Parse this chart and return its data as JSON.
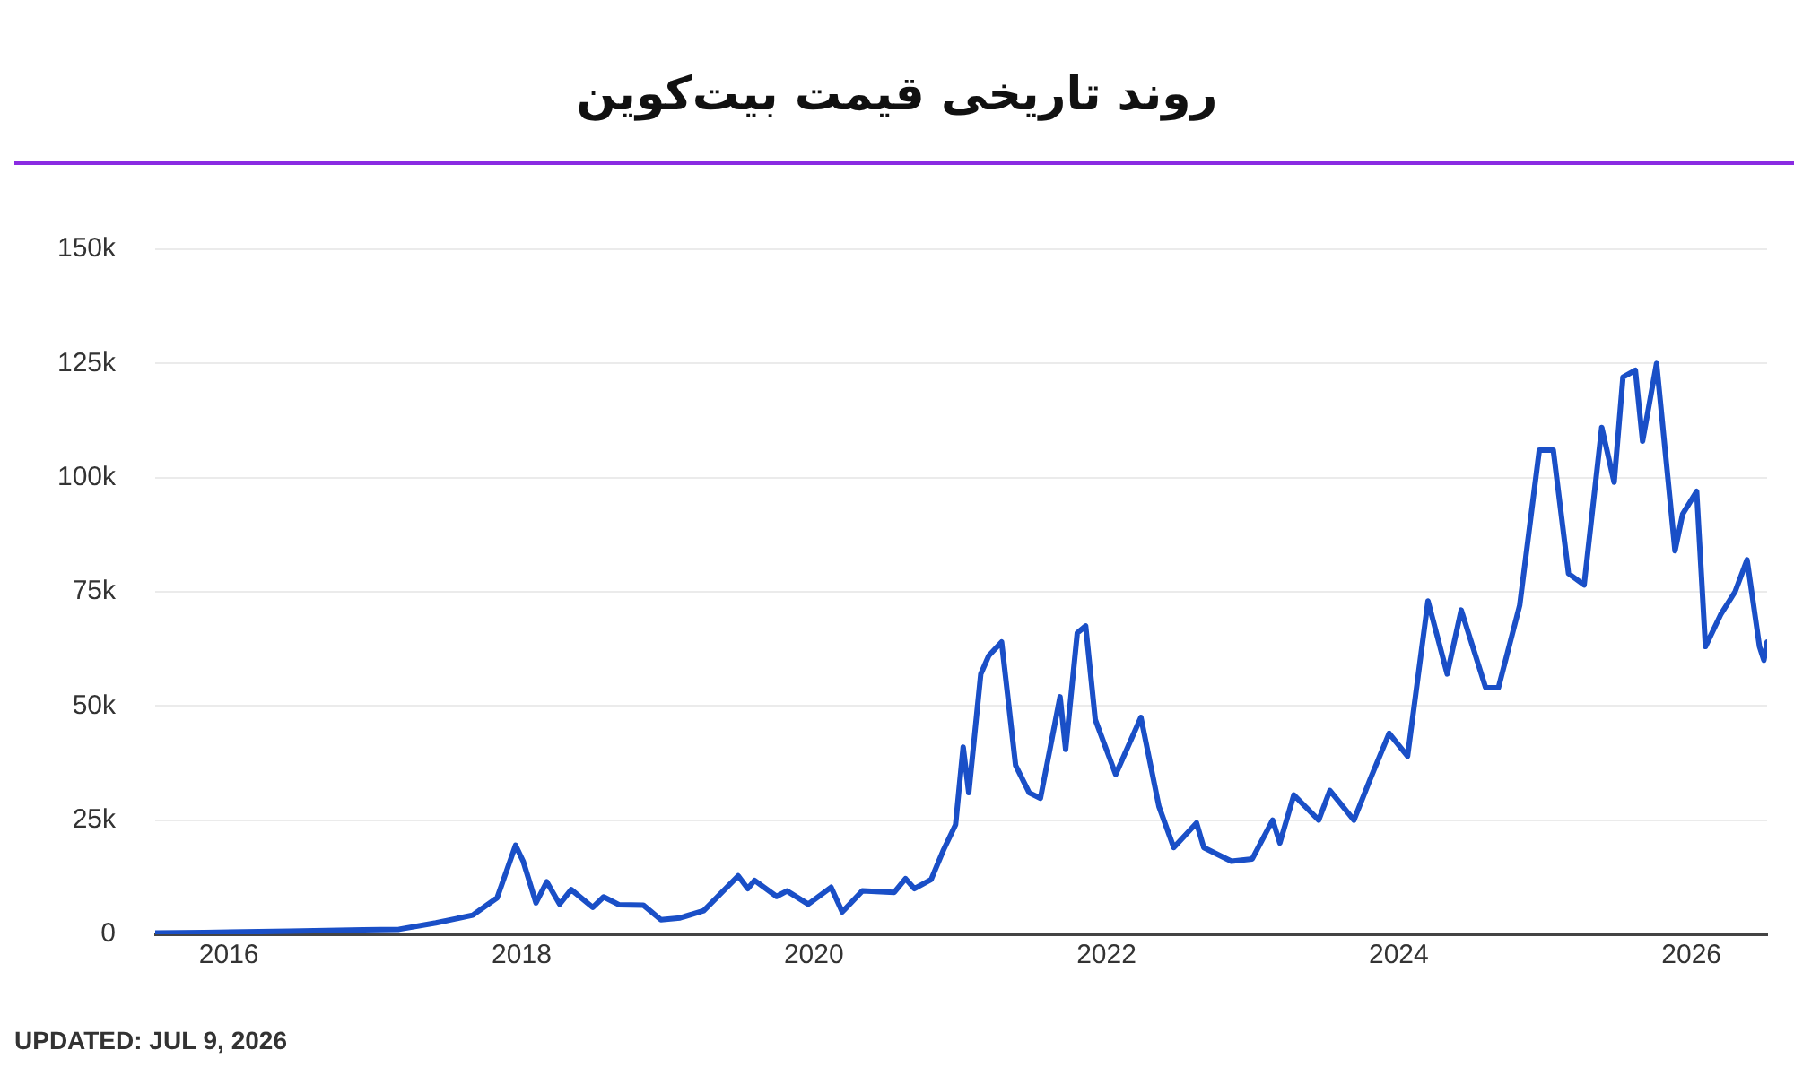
{
  "chart_data": {
    "type": "line",
    "title": "روند تاریخی قیمت بیت‌کوین",
    "annotations": [
      "UPDATED: JUL 9, 2026"
    ],
    "xlim": [
      "2015-07",
      "2026-07-09"
    ],
    "xticks": [
      "2016",
      "2018",
      "2020",
      "2022",
      "2024",
      "2026"
    ],
    "ylim": [
      0,
      150000
    ],
    "yticks": [
      {
        "value": 0,
        "label": "0"
      },
      {
        "value": 25000,
        "label": "25k"
      },
      {
        "value": 50000,
        "label": "50k"
      },
      {
        "value": 75000,
        "label": "75k"
      },
      {
        "value": 100000,
        "label": "100k"
      },
      {
        "value": 125000,
        "label": "125k"
      },
      {
        "value": 150000,
        "label": "150k"
      }
    ],
    "grid": "y",
    "legend": false,
    "marker": "none",
    "line_style": "solid",
    "series": [
      {
        "color": "#1a4fc7",
        "x": [
          "2015-07",
          "2015-11",
          "2016-06",
          "2016-12",
          "2017-03",
          "2017-06",
          "2017-09",
          "2017-11",
          "2017-12-17",
          "2018-01-05",
          "2018-02-06",
          "2018-03-05",
          "2018-04-06",
          "2018-05-05",
          "2018-06-28",
          "2018-07-25",
          "2018-09",
          "2018-11-01",
          "2018-12-15",
          "2019-02",
          "2019-04",
          "2019-06-26",
          "2019-07-20",
          "2019-08-06",
          "2019-09-30",
          "2019-10-26",
          "2019-12-18",
          "2020-02-13",
          "2020-03-12",
          "2020-05",
          "2020-07-20",
          "2020-08-17",
          "2020-09-08",
          "2020-10-20",
          "2020-11-20",
          "2020-12-20",
          "2021-01-08",
          "2021-01-22",
          "2021-02-21",
          "2021-03-13",
          "2021-04-14",
          "2021-05-19",
          "2021-06-22",
          "2021-07-20",
          "2021-09-07",
          "2021-09-21",
          "2021-10-20",
          "2021-11-10",
          "2021-12-04",
          "2022-01-24",
          "2022-03-28",
          "2022-05-12",
          "2022-06-18",
          "2022-08-14",
          "2022-09",
          "2022-11-09",
          "2022-12-31",
          "2023-02-20",
          "2023-03-10",
          "2023-04-14",
          "2023-06-15",
          "2023-07-13",
          "2023-09-11",
          "2023-10-24",
          "2023-12-08",
          "2024-01-23",
          "2024-03-14",
          "2024-05-01",
          "2024-06-05",
          "2024-08-05",
          "2024-09-06",
          "2024-10-29",
          "2024-12-17",
          "2025-01-21",
          "2025-02-28",
          "2025-04-08",
          "2025-05-22",
          "2025-06-22",
          "2025-07-14",
          "2025-08-14",
          "2025-09-01",
          "2025-10-06",
          "2025-11-21",
          "2025-12-10",
          "2026-01-14",
          "2026-02-05",
          "2026-03-15",
          "2026-04-20",
          "2026-05-20",
          "2026-06-20",
          "2026-07-01",
          "2026-07-09"
        ],
        "values": [
          280,
          380,
          700,
          960,
          1100,
          2500,
          4200,
          8000,
          19500,
          16000,
          6900,
          11500,
          6600,
          9800,
          5900,
          8200,
          6500,
          6400,
          3200,
          3600,
          5200,
          12800,
          10000,
          11800,
          8300,
          9500,
          6600,
          10300,
          4900,
          9500,
          9200,
          12200,
          10000,
          12000,
          18500,
          24000,
          41000,
          31000,
          57000,
          61000,
          64000,
          37000,
          31000,
          29800,
          52000,
          40500,
          66000,
          67500,
          47000,
          35000,
          47500,
          28000,
          19000,
          24400,
          19000,
          16000,
          16500,
          25000,
          20000,
          30500,
          25000,
          31500,
          25000,
          34500,
          44000,
          39000,
          73000,
          57000,
          71000,
          54000,
          54000,
          72000,
          106000,
          106000,
          79000,
          76500,
          111000,
          99000,
          122000,
          123500,
          108000,
          125000,
          84000,
          92000,
          97000,
          63000,
          70000,
          75000,
          82000,
          63000,
          60000,
          64000
        ]
      }
    ]
  }
}
